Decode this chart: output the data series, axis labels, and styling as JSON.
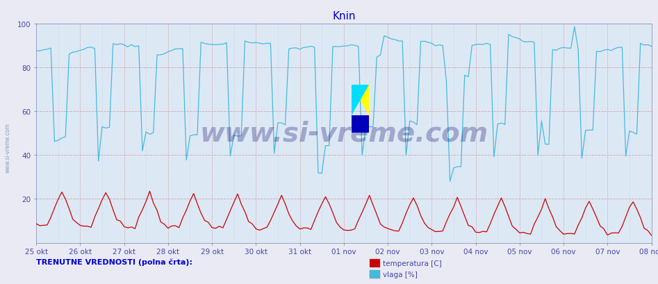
{
  "title": "Knin",
  "title_color": "#0000cc",
  "bg_color": "#eaeaf4",
  "plot_bg_color": "#dde8f5",
  "temp_color": "#cc0000",
  "hum_color": "#44bbdd",
  "tick_color": "#4444aa",
  "watermark": "www.si-vreme.com",
  "watermark_color": "#000066",
  "watermark_alpha": 0.28,
  "footer_text": "TRENUTNE VREDNOSTI (polna črta):",
  "legend_temp": "temperatura [C]",
  "legend_hum": "vlaga [%]",
  "ylim": [
    0,
    100
  ],
  "yticks": [
    20,
    40,
    60,
    80,
    100
  ],
  "x_labels": [
    "25 okt",
    "26 okt",
    "27 okt",
    "28 okt",
    "29 okt",
    "30 okt",
    "31 okt",
    "01 nov",
    "02 nov",
    "03 nov",
    "04 nov",
    "05 nov",
    "06 nov",
    "07 nov",
    "08 nov"
  ],
  "n_days": 14,
  "n_per_day": 12
}
